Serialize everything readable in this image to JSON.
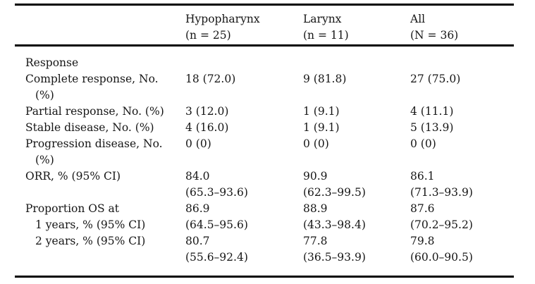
{
  "page": {
    "background_color": "#ffffff",
    "text_color": "#161616",
    "rule_color": "#000000"
  },
  "table": {
    "header": {
      "columns": [
        {
          "title": "Hypopharynx",
          "subtitle": "(n = 25)"
        },
        {
          "title": "Larynx",
          "subtitle": "(n = 11)"
        },
        {
          "title": "All",
          "subtitle": "(N = 36)"
        }
      ]
    },
    "rows": [
      {
        "kind": "section",
        "label_lines": [
          {
            "text": "Response",
            "indent": false
          }
        ],
        "cells": [
          [],
          [],
          []
        ]
      },
      {
        "kind": "data",
        "label_lines": [
          {
            "text": "Complete response, No.",
            "indent": false
          },
          {
            "text": "(%)",
            "indent": true
          }
        ],
        "cells": [
          [
            "18 (72.0)"
          ],
          [
            "9 (81.8)"
          ],
          [
            "27 (75.0)"
          ]
        ]
      },
      {
        "kind": "data",
        "label_lines": [
          {
            "text": "Partial response, No. (%)",
            "indent": false
          }
        ],
        "cells": [
          [
            "3 (12.0)"
          ],
          [
            "1 (9.1)"
          ],
          [
            "4 (11.1)"
          ]
        ]
      },
      {
        "kind": "data",
        "label_lines": [
          {
            "text": "Stable disease, No. (%)",
            "indent": false
          }
        ],
        "cells": [
          [
            "4 (16.0)"
          ],
          [
            "1 (9.1)"
          ],
          [
            "5 (13.9)"
          ]
        ]
      },
      {
        "kind": "data",
        "label_lines": [
          {
            "text": "Progression disease, No.",
            "indent": false
          },
          {
            "text": "(%)",
            "indent": true
          }
        ],
        "cells": [
          [
            "0 (0)"
          ],
          [
            "0 (0)"
          ],
          [
            "0 (0)"
          ]
        ]
      },
      {
        "kind": "data",
        "label_lines": [
          {
            "text": "ORR, % (95% CI)",
            "indent": false
          }
        ],
        "cells": [
          [
            "84.0",
            "(65.3–93.6)"
          ],
          [
            "90.9",
            "(62.3–99.5)"
          ],
          [
            "86.1",
            "(71.3–93.9)"
          ]
        ]
      },
      {
        "kind": "data",
        "label_lines": [
          {
            "text": "Proportion OS at",
            "indent": false
          },
          {
            "text": "1 years, % (95% CI)",
            "indent": true
          },
          {
            "text": "2 years, % (95% CI)",
            "indent": true
          }
        ],
        "cells": [
          [
            "86.9",
            "(64.5–95.6)",
            "80.7",
            "(55.6–92.4)"
          ],
          [
            "88.9",
            "(43.3–98.4)",
            "77.8",
            "(36.5–93.9)"
          ],
          [
            "87.6",
            "(70.2–95.2)",
            "79.8",
            "(60.0–90.5)"
          ]
        ]
      }
    ]
  }
}
